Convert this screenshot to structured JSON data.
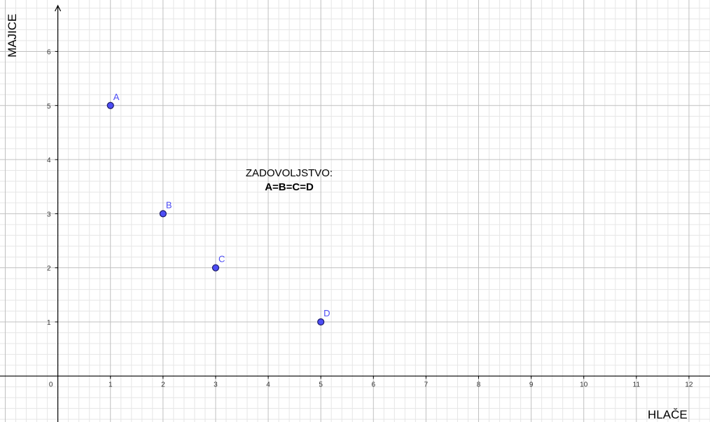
{
  "chart_data": {
    "type": "scatter",
    "xlabel": "HLAČE",
    "ylabel": "MAJICE",
    "xlim": [
      -1.1,
      12.4
    ],
    "ylim": [
      -0.85,
      6.95
    ],
    "grid": true,
    "minor_grid": true,
    "x_ticks": [
      "0",
      "1",
      "2",
      "3",
      "4",
      "5",
      "6",
      "7",
      "8",
      "9",
      "10",
      "11",
      "12"
    ],
    "y_ticks": [
      "1",
      "2",
      "3",
      "4",
      "5",
      "6"
    ],
    "points": [
      {
        "label": "A",
        "x": 1,
        "y": 5
      },
      {
        "label": "B",
        "x": 2,
        "y": 3
      },
      {
        "label": "C",
        "x": 3,
        "y": 2
      },
      {
        "label": "D",
        "x": 5,
        "y": 1
      }
    ],
    "annotation": {
      "line1": "ZADOVOLJSTVO:",
      "line2": "A=B=C=D"
    },
    "colors": {
      "point_fill": "#4d4df5",
      "point_stroke": "#1a1a66",
      "point_label": "#4d4df5",
      "major_grid": "#c0c0c0",
      "minor_grid": "#e6e6e6",
      "axis": "#000000"
    }
  }
}
